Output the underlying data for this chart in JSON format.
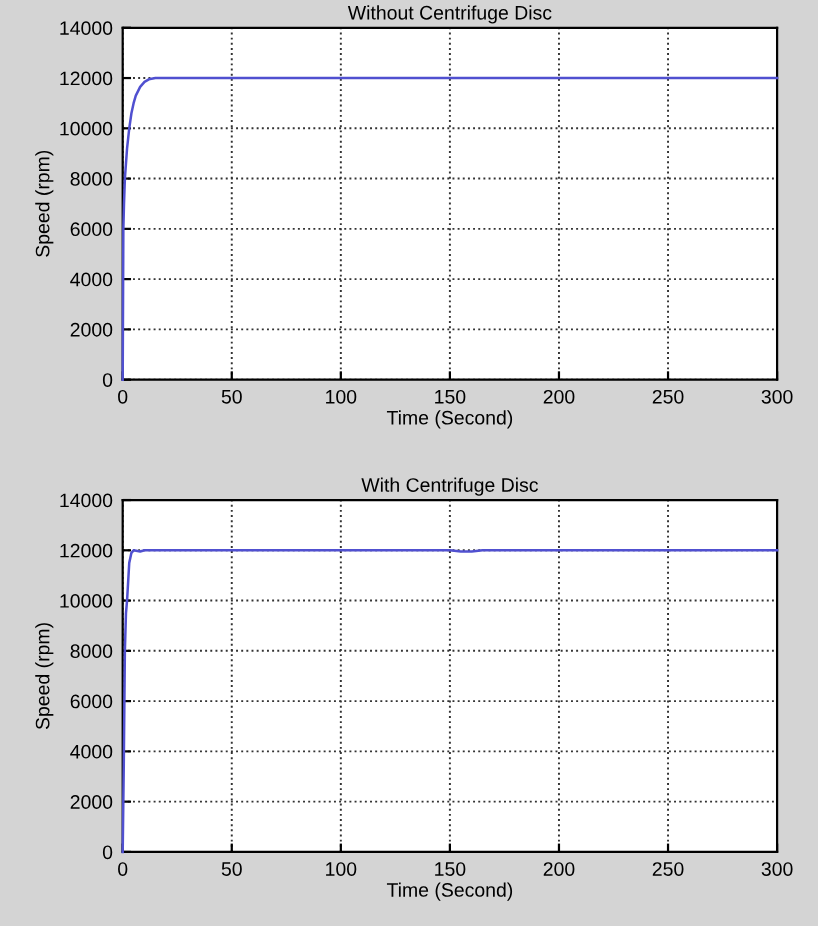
{
  "chart_data": [
    {
      "type": "line",
      "title": "Without Centrifuge Disc",
      "xlabel": "Time (Second)",
      "ylabel": "Speed (rpm)",
      "xlim": [
        0,
        300
      ],
      "ylim": [
        0,
        14000
      ],
      "xticks": [
        0,
        50,
        100,
        150,
        200,
        250,
        300
      ],
      "yticks": [
        0,
        2000,
        4000,
        6000,
        8000,
        10000,
        12000,
        14000
      ],
      "grid": true,
      "line_style": "solid",
      "series": [
        {
          "color": "#5050d0",
          "x": [
            0,
            0.3,
            0.6,
            1,
            2,
            3,
            4,
            5,
            6,
            8,
            10,
            12,
            15,
            20,
            50,
            100,
            150,
            200,
            250,
            300
          ],
          "values": [
            0,
            6000,
            7000,
            8000,
            9200,
            10000,
            10600,
            11000,
            11300,
            11650,
            11850,
            11950,
            12000,
            12000,
            12000,
            12000,
            12000,
            12000,
            12000,
            12000
          ]
        }
      ]
    },
    {
      "type": "line",
      "title": "With Centrifuge Disc",
      "xlabel": "Time (Second)",
      "ylabel": "Speed (rpm)",
      "xlim": [
        0,
        300
      ],
      "ylim": [
        0,
        14000
      ],
      "xticks": [
        0,
        50,
        100,
        150,
        200,
        250,
        300
      ],
      "yticks": [
        0,
        2000,
        4000,
        6000,
        8000,
        10000,
        12000,
        14000
      ],
      "grid": true,
      "line_style": "solid",
      "series": [
        {
          "color": "#5050d0",
          "x": [
            0,
            0.5,
            1,
            1.5,
            2,
            3,
            4,
            5,
            8,
            10,
            50,
            100,
            150,
            155,
            160,
            165,
            200,
            250,
            300
          ],
          "values": [
            0,
            3500,
            8000,
            9500,
            10000,
            11500,
            11900,
            12000,
            11950,
            12000,
            12000,
            12000,
            12000,
            11950,
            11950,
            12000,
            12000,
            12000,
            12000
          ]
        }
      ]
    }
  ]
}
